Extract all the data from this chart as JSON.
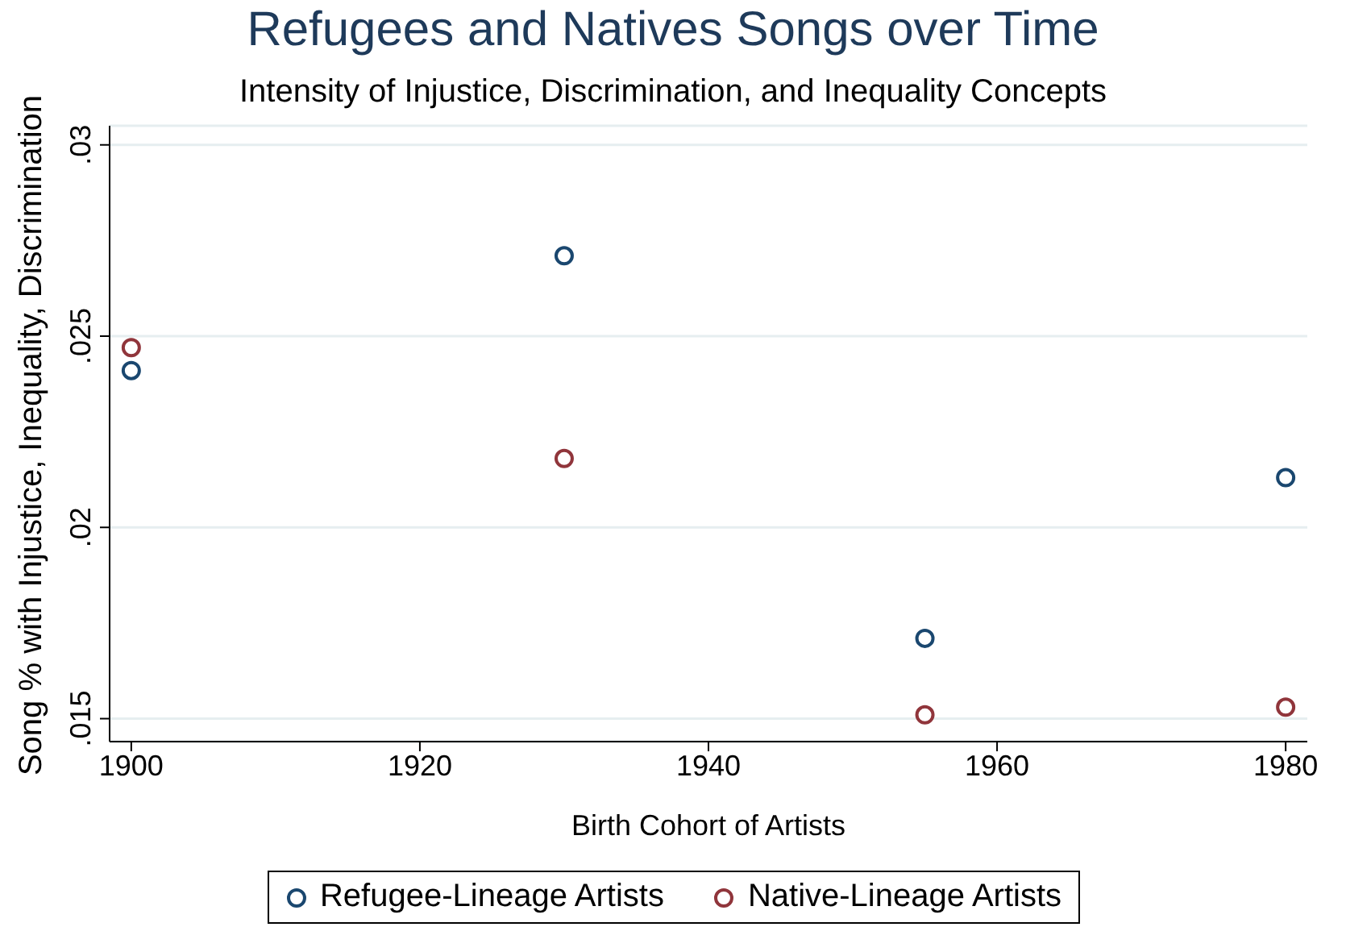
{
  "chart_data": {
    "type": "scatter",
    "title": "Refugees and Natives Songs over Time",
    "subtitle": "Intensity of Injustice, Discrimination, and Inequality Concepts",
    "xlabel": "Birth Cohort of Artists",
    "ylabel": "Song % with Injustice, Inequality, Discrimination",
    "x": [
      1900,
      1930,
      1955,
      1980
    ],
    "series": [
      {
        "name": "Refugee-Lineage Artists",
        "color": "#1a476f",
        "values": [
          0.0241,
          0.0271,
          0.0171,
          0.0213
        ]
      },
      {
        "name": "Native-Lineage Artists",
        "color": "#90353b",
        "values": [
          0.0247,
          0.0218,
          0.0151,
          0.0153
        ]
      }
    ],
    "xlim": [
      1898.5,
      1981.5
    ],
    "xticks": [
      1900,
      1920,
      1940,
      1960,
      1980
    ],
    "ylim": [
      0.0144,
      0.0305
    ],
    "yticks": [
      {
        "value": 0.015,
        "label": ".015"
      },
      {
        "value": 0.02,
        "label": ".02"
      },
      {
        "value": 0.025,
        "label": ".025"
      },
      {
        "value": 0.03,
        "label": ".03"
      }
    ],
    "grid": "y",
    "legend": "bottom",
    "marker": "circle"
  }
}
